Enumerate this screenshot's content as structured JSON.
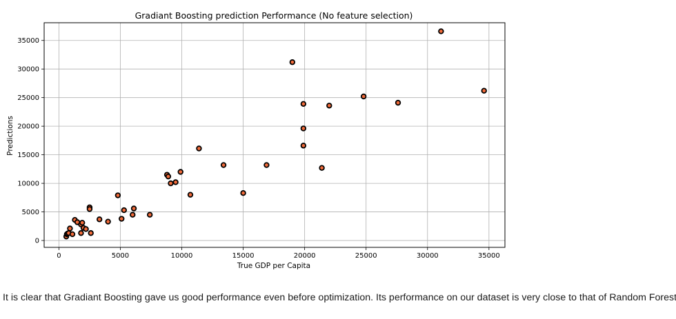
{
  "chart_data": {
    "type": "scatter",
    "title": "Gradiant Boosting prediction Performance (No feature selection)",
    "xlabel": "True GDP per Capita",
    "ylabel": "Predictions",
    "xlim": [
      -1200,
      36300
    ],
    "ylim": [
      -1200,
      38100
    ],
    "xticks": [
      0,
      5000,
      10000,
      15000,
      20000,
      25000,
      30000,
      35000
    ],
    "yticks": [
      0,
      5000,
      10000,
      15000,
      20000,
      25000,
      30000,
      35000
    ],
    "grid": true,
    "marker_fill": "#f26b3a",
    "marker_edge": "#000000",
    "points": [
      {
        "x": 600,
        "y": 700
      },
      {
        "x": 650,
        "y": 1100
      },
      {
        "x": 700,
        "y": 1200
      },
      {
        "x": 800,
        "y": 1300
      },
      {
        "x": 900,
        "y": 2100
      },
      {
        "x": 1100,
        "y": 1100
      },
      {
        "x": 1300,
        "y": 3600
      },
      {
        "x": 1500,
        "y": 3200
      },
      {
        "x": 1800,
        "y": 2800
      },
      {
        "x": 1800,
        "y": 1300
      },
      {
        "x": 1900,
        "y": 3100
      },
      {
        "x": 2000,
        "y": 2200
      },
      {
        "x": 2200,
        "y": 2000
      },
      {
        "x": 2500,
        "y": 5800
      },
      {
        "x": 2500,
        "y": 5500
      },
      {
        "x": 2600,
        "y": 1300
      },
      {
        "x": 3300,
        "y": 3700
      },
      {
        "x": 4000,
        "y": 3300
      },
      {
        "x": 4800,
        "y": 7900
      },
      {
        "x": 5100,
        "y": 3800
      },
      {
        "x": 5300,
        "y": 5300
      },
      {
        "x": 6000,
        "y": 4500
      },
      {
        "x": 6100,
        "y": 5600
      },
      {
        "x": 7400,
        "y": 4500
      },
      {
        "x": 8800,
        "y": 11500
      },
      {
        "x": 8900,
        "y": 11200
      },
      {
        "x": 9100,
        "y": 10000
      },
      {
        "x": 9500,
        "y": 10200
      },
      {
        "x": 9900,
        "y": 12000
      },
      {
        "x": 10700,
        "y": 8000
      },
      {
        "x": 11400,
        "y": 16100
      },
      {
        "x": 13400,
        "y": 13200
      },
      {
        "x": 15000,
        "y": 8300
      },
      {
        "x": 16900,
        "y": 13200
      },
      {
        "x": 19000,
        "y": 31200
      },
      {
        "x": 19900,
        "y": 23900
      },
      {
        "x": 19900,
        "y": 19600
      },
      {
        "x": 19900,
        "y": 16600
      },
      {
        "x": 21400,
        "y": 12700
      },
      {
        "x": 22000,
        "y": 23600
      },
      {
        "x": 24800,
        "y": 25200
      },
      {
        "x": 27600,
        "y": 24100
      },
      {
        "x": 31100,
        "y": 36600
      },
      {
        "x": 34600,
        "y": 26200
      }
    ]
  },
  "caption": "It is clear that Gradiant Boosting gave us good performance even before optimization. Its performance on our dataset is very close to that of Random Forest."
}
